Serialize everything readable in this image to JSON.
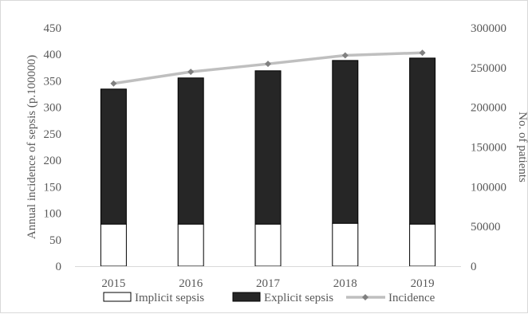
{
  "chart_data": {
    "type": "bar",
    "categories": [
      "2015",
      "2016",
      "2017",
      "2018",
      "2019"
    ],
    "y_left": {
      "label": "Annual incidence of sepsis (p.100000)",
      "ticks": [
        "0",
        "50",
        "100",
        "150",
        "200",
        "250",
        "300",
        "350",
        "400",
        "450"
      ],
      "ylim": [
        0,
        450
      ]
    },
    "y_right": {
      "label": "No. of patients",
      "ticks": [
        "0",
        "50000",
        "100000",
        "150000",
        "200000",
        "250000",
        "300000"
      ],
      "ylim": [
        0,
        300000
      ]
    },
    "series": [
      {
        "name": "Implicit sepsis",
        "kind": "bar-stacked",
        "axis": "right",
        "color": "#ffffff",
        "values": [
          53000,
          53000,
          53000,
          54000,
          53000
        ]
      },
      {
        "name": "Explicit sepsis",
        "kind": "bar-stacked",
        "axis": "right",
        "color": "#262626",
        "values": [
          170000,
          184000,
          193000,
          205000,
          209000
        ]
      },
      {
        "name": "Incidence",
        "kind": "line",
        "axis": "left",
        "color": "#bfbfbf",
        "marker_color": "#808080",
        "values": [
          345,
          367,
          382,
          398,
          403
        ]
      }
    ],
    "legend": "bottom",
    "grid": false
  }
}
